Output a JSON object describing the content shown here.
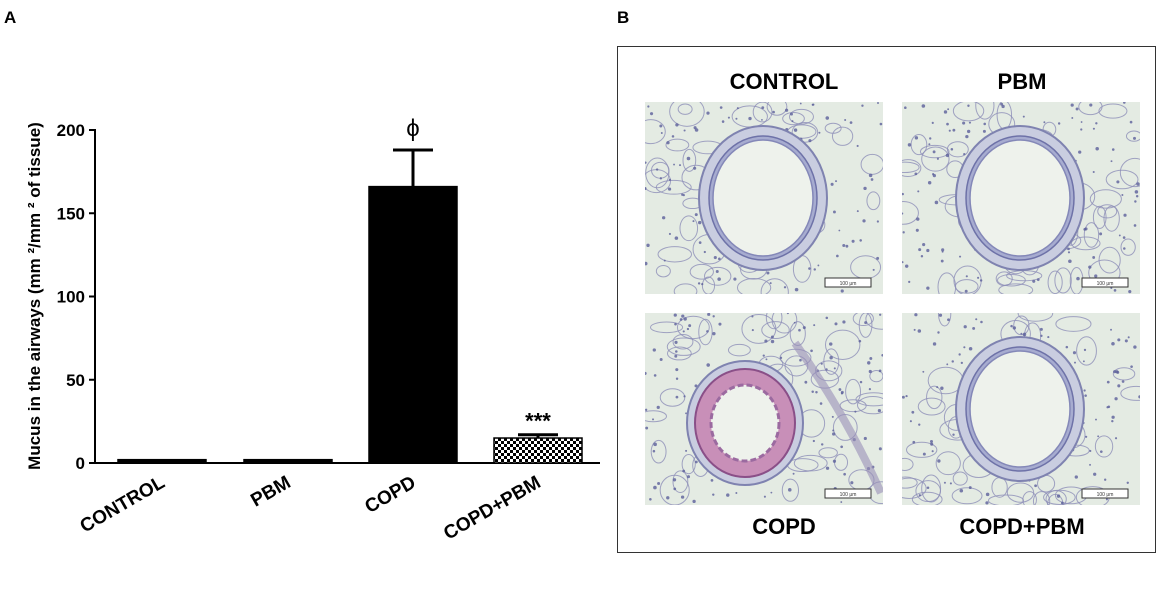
{
  "panel_a": {
    "letter": "A"
  },
  "panel_b": {
    "letter": "B",
    "images": [
      {
        "label": "CONTROL",
        "scale_bar": "100 μm",
        "mucus": false
      },
      {
        "label": "PBM",
        "scale_bar": "100 μm",
        "mucus": false
      },
      {
        "label": "COPD",
        "scale_bar": "100 μm",
        "mucus": true
      },
      {
        "label": "COPD+PBM",
        "scale_bar": "100 μm",
        "mucus": false
      }
    ]
  },
  "chart_data": {
    "type": "bar",
    "title": "",
    "ylabel": "Mucus in the airways (mm ²/mm ² of tissue)",
    "ylim": [
      0,
      200
    ],
    "yticks": [
      0,
      50,
      100,
      150,
      200
    ],
    "categories": [
      "CONTROL",
      "PBM",
      "COPD",
      "COPD+PBM"
    ],
    "values": [
      2,
      2,
      166,
      15
    ],
    "errors": [
      0.5,
      0.5,
      22,
      2
    ],
    "annotations": [
      "",
      "",
      "ϕ",
      "***"
    ],
    "bar_fills": [
      "#000000",
      "#000000",
      "#000000",
      "checkered"
    ]
  }
}
